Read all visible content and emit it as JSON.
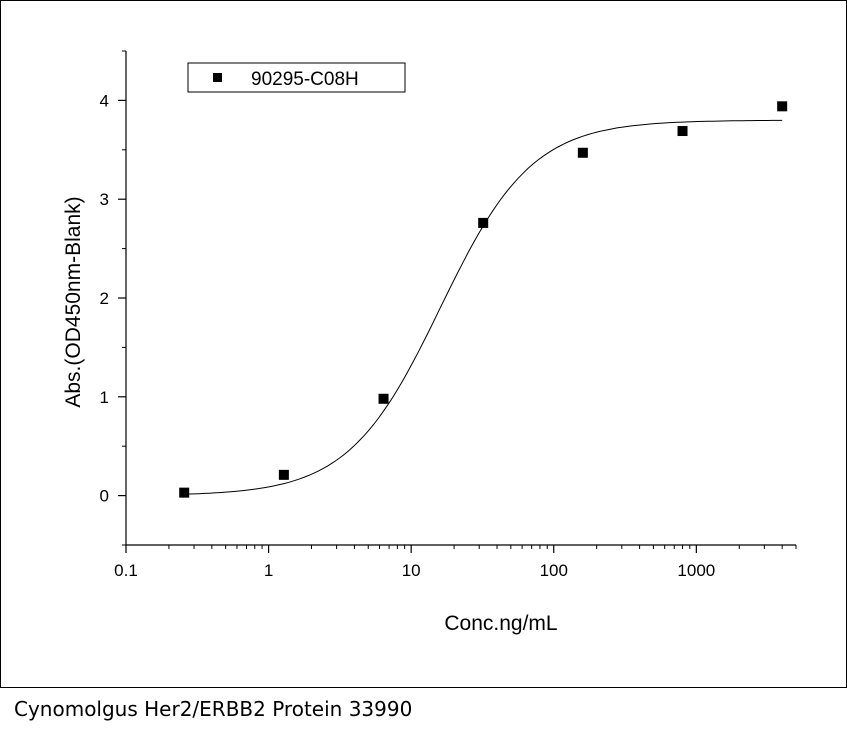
{
  "chart_data": {
    "type": "scatter",
    "xlabel": "Conc.ng/mL",
    "ylabel": "Abs.(OD450nm-Blank)",
    "x_scale": "log",
    "xlim": [
      0.1,
      5000
    ],
    "ylim": [
      -0.5,
      4.5
    ],
    "x_ticks": [
      {
        "value": 0.1,
        "label": "0.1"
      },
      {
        "value": 1,
        "label": "1"
      },
      {
        "value": 10,
        "label": "10"
      },
      {
        "value": 100,
        "label": "100"
      },
      {
        "value": 1000,
        "label": "1000"
      }
    ],
    "y_ticks": [
      {
        "value": 0,
        "label": "0"
      },
      {
        "value": 1,
        "label": "1"
      },
      {
        "value": 2,
        "label": "2"
      },
      {
        "value": 3,
        "label": "3"
      },
      {
        "value": 4,
        "label": "4"
      }
    ],
    "legend_position": "top-left",
    "series": [
      {
        "name": "90295-C08H",
        "marker": "square",
        "color": "#000000",
        "x": [
          0.256,
          1.28,
          6.4,
          32,
          160,
          800,
          4000
        ],
        "y": [
          0.03,
          0.21,
          0.98,
          2.76,
          3.47,
          3.69,
          3.94
        ]
      }
    ],
    "fit_curve": {
      "model": "4PL",
      "bottom": 0.0,
      "top": 3.8,
      "ec50": 16,
      "hill": 1.35,
      "color": "#000000"
    }
  },
  "caption": "Cynomolgus Her2/ERBB2 Protein 33990"
}
